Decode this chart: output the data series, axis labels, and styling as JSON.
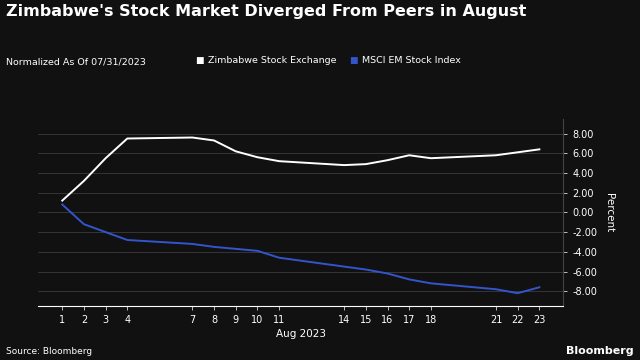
{
  "title": "Zimbabwe's Stock Market Diverged From Peers in August",
  "subtitle": "Normalized As Of 07/31/2023",
  "legend_labels": [
    "Zimbabwe Stock Exchange",
    "MSCI EM Stock Index"
  ],
  "legend_colors": [
    "#ffffff",
    "#3355cc"
  ],
  "xlabel": "Aug 2023",
  "ylabel": "Percent",
  "source": "Source: Bloomberg",
  "watermark": "Bloomberg",
  "background_color": "#111111",
  "text_color": "#ffffff",
  "grid_color": "#444444",
  "x_ticks": [
    1,
    2,
    3,
    4,
    7,
    8,
    9,
    10,
    11,
    14,
    15,
    16,
    17,
    18,
    21,
    22,
    23
  ],
  "ylim": [
    -9.5,
    9.5
  ],
  "yticks": [
    -8,
    -6,
    -4,
    -2,
    0,
    2,
    4,
    6,
    8
  ],
  "zimbabwe_x": [
    1,
    2,
    3,
    4,
    7,
    8,
    9,
    10,
    11,
    14,
    15,
    16,
    17,
    18,
    21,
    22,
    23
  ],
  "zimbabwe_y": [
    1.2,
    3.2,
    5.5,
    7.5,
    7.6,
    7.3,
    6.2,
    5.6,
    5.2,
    4.8,
    4.9,
    5.3,
    5.8,
    5.5,
    5.8,
    6.1,
    6.4
  ],
  "msci_x": [
    1,
    2,
    3,
    4,
    7,
    8,
    9,
    10,
    11,
    14,
    15,
    16,
    17,
    18,
    21,
    22,
    23
  ],
  "msci_y": [
    0.8,
    -1.2,
    -2.0,
    -2.8,
    -3.2,
    -3.5,
    -3.7,
    -3.9,
    -4.6,
    -5.5,
    -5.8,
    -6.2,
    -6.8,
    -7.2,
    -7.8,
    -8.2,
    -7.6
  ]
}
